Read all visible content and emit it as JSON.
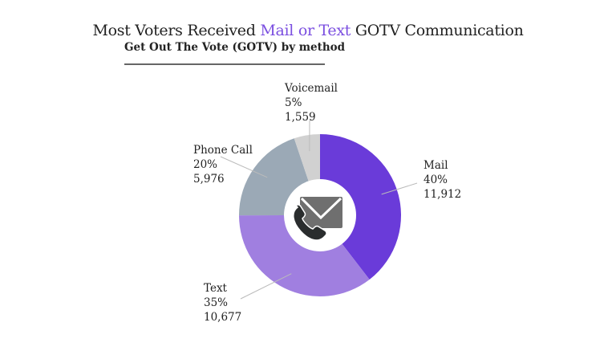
{
  "chart_data": {
    "type": "pie",
    "variant": "donut",
    "title_parts": {
      "before": "Most Voters Received ",
      "highlight": "Mail or Text",
      "after": " GOTV Communication"
    },
    "subtitle": "Get Out The Vote (GOTV) by method",
    "slices": [
      {
        "label": "Mail",
        "percent": "40%",
        "count": "11,912",
        "value": 11912,
        "color": "#6a3bd9"
      },
      {
        "label": "Text",
        "percent": "35%",
        "count": "10,677",
        "value": 10677,
        "color": "#a07fe0"
      },
      {
        "label": "Phone Call",
        "percent": "20%",
        "count": "5,976",
        "value": 5976,
        "color": "#9ba9b6"
      },
      {
        "label": "Voicemail",
        "percent": "5%",
        "count": "1,559",
        "value": 1559,
        "color": "#d1d1d1"
      }
    ],
    "center_icon": "phone-and-envelope-icon",
    "highlight_color": "#7b4fe0"
  }
}
